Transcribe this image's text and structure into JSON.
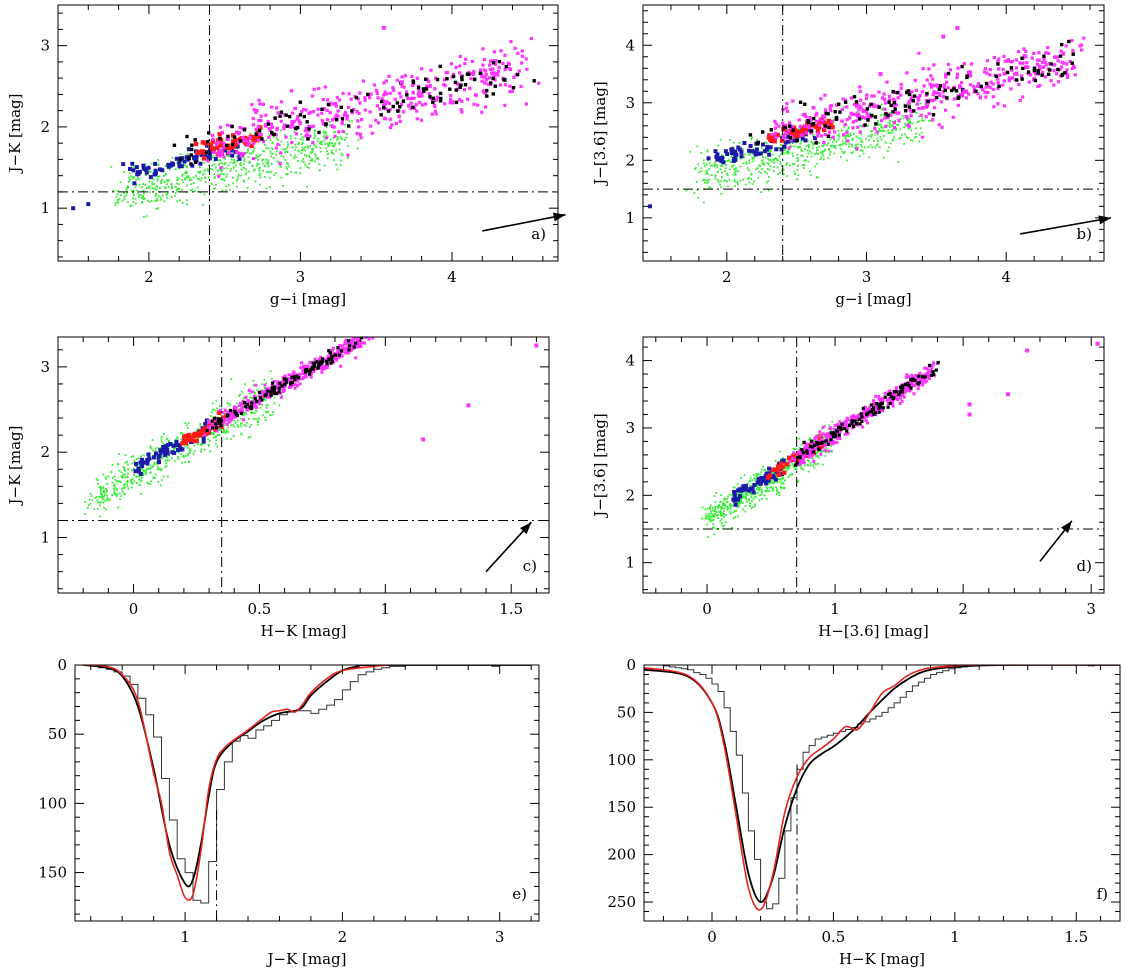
{
  "chart_data": [
    {
      "panel": "a)",
      "type": "scatter",
      "xlabel": "g−i [mag]",
      "ylabel": "J−K [mag]",
      "xlim": [
        1.4,
        4.7
      ],
      "ylim": [
        3.5,
        0.35
      ],
      "xticks": [
        2,
        3,
        4
      ],
      "yticks": [
        1,
        2,
        3
      ],
      "minor_x": 0.2,
      "minor_y": 0.2,
      "cut_x": 2.4,
      "cut_y": 1.2,
      "extinction_arrow": [
        [
          4.2,
          0.72
        ],
        [
          4.75,
          0.92
        ]
      ],
      "trend": {
        "x0": 2.0,
        "x1": 4.4,
        "a": 0.78,
        "b": 0.45,
        "c": 0.0
      },
      "series": [
        {
          "group": "green",
          "color": "#33ee33",
          "n": 640,
          "xmin": 1.8,
          "xmax": 3.3,
          "sx": 0.3,
          "sy": 0.15,
          "offset": -0.3,
          "size": 1.8
        },
        {
          "group": "blue",
          "color": "#1a1aaa",
          "n": 70,
          "xmin": 1.85,
          "xmax": 2.6,
          "sx": 0.2,
          "sy": 0.06,
          "offset": -0.1,
          "size": 4
        },
        {
          "group": "red",
          "color": "#ff1a1a",
          "n": 55,
          "xmin": 2.3,
          "xmax": 2.75,
          "sx": 0.08,
          "sy": 0.05,
          "offset": 0.0,
          "size": 4.5
        },
        {
          "group": "magenta",
          "color": "#ff33ff",
          "n": 420,
          "xmin": 2.4,
          "xmax": 4.5,
          "sx": 0.5,
          "sy": 0.16,
          "offset": 0.05,
          "size": 3.2
        },
        {
          "group": "black",
          "color": "#000000",
          "n": 110,
          "xmin": 2.2,
          "xmax": 4.45,
          "sx": 0.45,
          "sy": 0.12,
          "offset": 0.04,
          "size": 3.4
        }
      ],
      "outliers": [
        [
          1.5,
          1.0,
          "blue"
        ],
        [
          1.6,
          1.05,
          "blue"
        ],
        [
          3.55,
          3.22,
          "magenta"
        ],
        [
          3.67,
          2.55,
          "magenta"
        ]
      ]
    },
    {
      "panel": "b)",
      "type": "scatter",
      "xlabel": "g−i [mag]",
      "ylabel": "J−[3.6] [mag]",
      "xlim": [
        1.4,
        4.7
      ],
      "ylim": [
        4.7,
        0.25
      ],
      "xticks": [
        2,
        3,
        4
      ],
      "yticks": [
        1,
        2,
        3,
        4
      ],
      "minor_x": 0.2,
      "minor_y": 0.2,
      "cut_x": 2.4,
      "cut_y": 1.5,
      "extinction_arrow": [
        [
          4.1,
          0.72
        ],
        [
          4.75,
          1.0
        ]
      ],
      "trend": {
        "x0": 2.0,
        "x1": 4.4,
        "a": 1.1,
        "b": 0.6,
        "c": 0.0
      },
      "series": [
        {
          "group": "green",
          "color": "#33ee33",
          "n": 620,
          "xmin": 1.8,
          "xmax": 3.4,
          "sx": 0.3,
          "sy": 0.2,
          "offset": -0.35,
          "size": 1.8
        },
        {
          "group": "blue",
          "color": "#1a1aaa",
          "n": 65,
          "xmin": 1.9,
          "xmax": 2.6,
          "sx": 0.2,
          "sy": 0.08,
          "offset": -0.12,
          "size": 4
        },
        {
          "group": "red",
          "color": "#ff1a1a",
          "n": 50,
          "xmin": 2.3,
          "xmax": 2.75,
          "sx": 0.08,
          "sy": 0.06,
          "offset": 0.0,
          "size": 4.5
        },
        {
          "group": "magenta",
          "color": "#ff33ff",
          "n": 430,
          "xmin": 2.4,
          "xmax": 4.5,
          "sx": 0.5,
          "sy": 0.22,
          "offset": 0.05,
          "size": 3.2
        },
        {
          "group": "black",
          "color": "#000000",
          "n": 110,
          "xmin": 2.2,
          "xmax": 4.45,
          "sx": 0.45,
          "sy": 0.16,
          "offset": 0.05,
          "size": 3.4
        }
      ],
      "outliers": [
        [
          1.45,
          1.2,
          "blue"
        ],
        [
          3.1,
          3.5,
          "magenta"
        ],
        [
          3.55,
          4.15,
          "magenta"
        ],
        [
          3.65,
          4.3,
          "magenta"
        ],
        [
          3.7,
          3.2,
          "magenta"
        ]
      ]
    },
    {
      "panel": "c)",
      "type": "scatter",
      "xlabel": "H−K [mag]",
      "ylabel": "J−K [mag]",
      "xlim": [
        -0.3,
        1.65
      ],
      "ylim": [
        3.35,
        0.35
      ],
      "xticks": [
        0,
        0.5,
        1,
        1.5
      ],
      "yticks": [
        1,
        2,
        3
      ],
      "minor_x": 0.1,
      "minor_y": 0.2,
      "cut_x": 0.35,
      "cut_y": 1.2,
      "extinction_arrow": [
        [
          1.4,
          0.6
        ],
        [
          1.58,
          1.18
        ]
      ],
      "trend": {
        "x0": -0.2,
        "x1": 1.0,
        "a": 0.72,
        "b": 1.7,
        "c": 0.0
      },
      "series": [
        {
          "group": "green",
          "color": "#33ee33",
          "n": 640,
          "xmin": -0.15,
          "xmax": 0.55,
          "sx": 0.15,
          "sy": 0.12,
          "offset": -0.05,
          "size": 1.8
        },
        {
          "group": "blue",
          "color": "#1a1aaa",
          "n": 60,
          "xmin": 0.0,
          "xmax": 0.3,
          "sx": 0.08,
          "sy": 0.05,
          "offset": 0.0,
          "size": 4
        },
        {
          "group": "red",
          "color": "#ff1a1a",
          "n": 55,
          "xmin": 0.2,
          "xmax": 0.4,
          "sx": 0.05,
          "sy": 0.04,
          "offset": 0.0,
          "size": 4.5
        },
        {
          "group": "magenta",
          "color": "#ff33ff",
          "n": 420,
          "xmin": 0.3,
          "xmax": 0.95,
          "sx": 0.15,
          "sy": 0.05,
          "offset": 0.0,
          "size": 3.0
        },
        {
          "group": "black",
          "color": "#000000",
          "n": 110,
          "xmin": 0.3,
          "xmax": 0.9,
          "sx": 0.15,
          "sy": 0.04,
          "offset": 0.0,
          "size": 3.2
        }
      ],
      "outliers": [
        [
          1.15,
          2.15,
          "magenta"
        ],
        [
          1.33,
          2.55,
          "magenta"
        ],
        [
          1.6,
          3.25,
          "magenta"
        ]
      ]
    },
    {
      "panel": "d)",
      "type": "scatter",
      "xlabel": "H−[3.6] [mag]",
      "ylabel": "J−[3.6] [mag]",
      "xlim": [
        -0.5,
        3.1
      ],
      "ylim": [
        4.35,
        0.55
      ],
      "xticks": [
        0,
        1,
        2,
        3
      ],
      "yticks": [
        1,
        2,
        3,
        4
      ],
      "minor_x": 0.2,
      "minor_y": 0.2,
      "cut_x": 0.7,
      "cut_y": 1.5,
      "extinction_arrow": [
        [
          2.6,
          1.02
        ],
        [
          2.85,
          1.62
        ]
      ],
      "trend": {
        "x0": 0.0,
        "x1": 1.8,
        "a": 0.85,
        "b": 1.22,
        "c": 0.0
      },
      "series": [
        {
          "group": "green",
          "color": "#33ee33",
          "n": 620,
          "xmin": 0.0,
          "xmax": 0.95,
          "sx": 0.2,
          "sy": 0.12,
          "offset": -0.06,
          "size": 1.8
        },
        {
          "group": "blue",
          "color": "#1a1aaa",
          "n": 60,
          "xmin": 0.2,
          "xmax": 0.6,
          "sx": 0.1,
          "sy": 0.06,
          "offset": 0.0,
          "size": 4
        },
        {
          "group": "red",
          "color": "#ff1a1a",
          "n": 55,
          "xmin": 0.5,
          "xmax": 0.9,
          "sx": 0.08,
          "sy": 0.05,
          "offset": 0.0,
          "size": 4.5
        },
        {
          "group": "magenta",
          "color": "#ff33ff",
          "n": 420,
          "xmin": 0.7,
          "xmax": 1.75,
          "sx": 0.25,
          "sy": 0.07,
          "offset": 0.0,
          "size": 3.0
        },
        {
          "group": "black",
          "color": "#000000",
          "n": 110,
          "xmin": 0.7,
          "xmax": 1.75,
          "sx": 0.25,
          "sy": 0.05,
          "offset": 0.0,
          "size": 3.2
        }
      ],
      "outliers": [
        [
          2.05,
          3.2,
          "magenta"
        ],
        [
          2.05,
          3.35,
          "magenta"
        ],
        [
          2.35,
          3.5,
          "magenta"
        ],
        [
          2.5,
          4.15,
          "magenta"
        ],
        [
          3.05,
          4.25,
          "magenta"
        ]
      ]
    },
    {
      "panel": "e)",
      "type": "histogram",
      "xlabel": "J−K [mag]",
      "ylabel": "",
      "xlim": [
        0.3,
        3.25
      ],
      "ylim": [
        0,
        185
      ],
      "xticks": [
        1,
        2,
        3
      ],
      "yticks": [
        0,
        50,
        100,
        150
      ],
      "minor_x": 0.2,
      "minor_y": 10,
      "cut_x": 1.2,
      "hist_start": 0.4,
      "bin_width": 0.05,
      "hist_counts": [
        0,
        2,
        3,
        5,
        8,
        14,
        24,
        36,
        52,
        82,
        112,
        140,
        150,
        170,
        172,
        142,
        90,
        70,
        55,
        51,
        53,
        47,
        44,
        40,
        36,
        34,
        33,
        33,
        35,
        32,
        29,
        25,
        18,
        12,
        7,
        5,
        3,
        2,
        1,
        1,
        0,
        0,
        0,
        0,
        0,
        0,
        0,
        0,
        0,
        0,
        0,
        1,
        0,
        0,
        0,
        0
      ],
      "black_curve": [
        [
          0.35,
          0
        ],
        [
          0.5,
          2
        ],
        [
          0.6,
          8
        ],
        [
          0.7,
          30
        ],
        [
          0.8,
          75
        ],
        [
          0.9,
          130
        ],
        [
          1.0,
          158
        ],
        [
          1.05,
          155
        ],
        [
          1.1,
          130
        ],
        [
          1.15,
          95
        ],
        [
          1.2,
          70
        ],
        [
          1.3,
          56
        ],
        [
          1.4,
          48
        ],
        [
          1.5,
          40
        ],
        [
          1.6,
          35
        ],
        [
          1.7,
          33
        ],
        [
          1.75,
          30
        ],
        [
          1.8,
          22
        ],
        [
          1.9,
          12
        ],
        [
          2.0,
          4
        ],
        [
          2.1,
          1
        ],
        [
          2.2,
          0
        ],
        [
          3.2,
          0
        ]
      ],
      "red_curve": [
        [
          0.35,
          0
        ],
        [
          0.5,
          1
        ],
        [
          0.6,
          7
        ],
        [
          0.7,
          26
        ],
        [
          0.8,
          78
        ],
        [
          0.85,
          100
        ],
        [
          0.9,
          135
        ],
        [
          0.95,
          152
        ],
        [
          1.0,
          168
        ],
        [
          1.05,
          166
        ],
        [
          1.1,
          135
        ],
        [
          1.15,
          90
        ],
        [
          1.2,
          68
        ],
        [
          1.25,
          60
        ],
        [
          1.3,
          55
        ],
        [
          1.4,
          47
        ],
        [
          1.5,
          38
        ],
        [
          1.55,
          34
        ],
        [
          1.6,
          33
        ],
        [
          1.65,
          32
        ],
        [
          1.7,
          34
        ],
        [
          1.75,
          28
        ],
        [
          1.8,
          20
        ],
        [
          1.9,
          10
        ],
        [
          2.0,
          4
        ],
        [
          2.2,
          1
        ],
        [
          2.3,
          0
        ]
      ]
    },
    {
      "panel": "f)",
      "type": "histogram",
      "xlabel": "H−K [mag]",
      "ylabel": "",
      "xlim": [
        -0.28,
        1.68
      ],
      "ylim": [
        0,
        270
      ],
      "xticks": [
        0,
        0.5,
        1,
        1.5
      ],
      "yticks": [
        0,
        50,
        100,
        150,
        200,
        250
      ],
      "minor_x": 0.1,
      "minor_y": 10,
      "cut_x": 0.35,
      "hist_start": -0.2,
      "bin_width": 0.025,
      "hist_counts": [
        1,
        2,
        3,
        4,
        5,
        8,
        10,
        14,
        20,
        28,
        45,
        70,
        95,
        135,
        175,
        205,
        250,
        257,
        252,
        225,
        175,
        140,
        110,
        92,
        85,
        78,
        76,
        74,
        72,
        70,
        68,
        66,
        62,
        60,
        57,
        54,
        50,
        45,
        40,
        34,
        28,
        22,
        18,
        14,
        10,
        8,
        6,
        4,
        3,
        2,
        1,
        1,
        0,
        0,
        0,
        0,
        0,
        0,
        0,
        0,
        0,
        0,
        0,
        0,
        0,
        0,
        0,
        0,
        0,
        0,
        1,
        0,
        0,
        0,
        0,
        0,
        0
      ],
      "black_curve": [
        [
          -0.28,
          5
        ],
        [
          -0.1,
          12
        ],
        [
          0.0,
          40
        ],
        [
          0.05,
          80
        ],
        [
          0.1,
          150
        ],
        [
          0.15,
          220
        ],
        [
          0.2,
          250
        ],
        [
          0.25,
          225
        ],
        [
          0.3,
          170
        ],
        [
          0.35,
          130
        ],
        [
          0.4,
          105
        ],
        [
          0.45,
          94
        ],
        [
          0.5,
          86
        ],
        [
          0.55,
          76
        ],
        [
          0.6,
          64
        ],
        [
          0.65,
          50
        ],
        [
          0.7,
          37
        ],
        [
          0.75,
          25
        ],
        [
          0.8,
          16
        ],
        [
          0.85,
          9
        ],
        [
          0.9,
          5
        ],
        [
          1.0,
          2
        ],
        [
          1.2,
          0
        ],
        [
          1.68,
          0
        ]
      ],
      "red_curve": [
        [
          -0.28,
          3
        ],
        [
          -0.1,
          11
        ],
        [
          0.0,
          40
        ],
        [
          0.05,
          85
        ],
        [
          0.1,
          160
        ],
        [
          0.15,
          235
        ],
        [
          0.2,
          258
        ],
        [
          0.25,
          222
        ],
        [
          0.3,
          155
        ],
        [
          0.35,
          118
        ],
        [
          0.4,
          98
        ],
        [
          0.45,
          88
        ],
        [
          0.5,
          78
        ],
        [
          0.55,
          65
        ],
        [
          0.6,
          68
        ],
        [
          0.65,
          50
        ],
        [
          0.7,
          30
        ],
        [
          0.75,
          22
        ],
        [
          0.8,
          12
        ],
        [
          0.85,
          6
        ],
        [
          0.9,
          3
        ],
        [
          1.0,
          1
        ],
        [
          1.1,
          0
        ],
        [
          1.68,
          0
        ]
      ]
    }
  ]
}
